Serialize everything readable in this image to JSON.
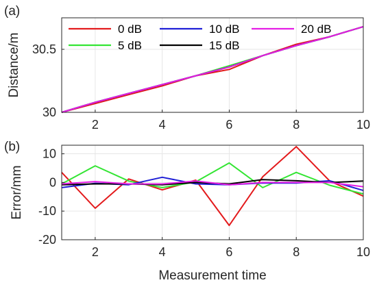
{
  "chart_data": [
    {
      "type": "line",
      "panel_label": "(a)",
      "title": "",
      "xlabel": "",
      "ylabel": "Distance/m",
      "xlim": [
        1,
        10
      ],
      "ylim": [
        30,
        30.75
      ],
      "x": [
        1,
        2,
        3,
        4,
        5,
        6,
        7,
        8,
        9,
        10
      ],
      "x_ticks": [
        2,
        4,
        6,
        8,
        10
      ],
      "y_ticks": [
        30,
        30.5
      ],
      "y_tick_labels": [
        "30",
        "30.5"
      ],
      "grid": true,
      "legend": {
        "position": "top-left",
        "columns": 3
      },
      "series": [
        {
          "name": "0 dB",
          "color": "#e31a1c",
          "values": [
            30.0,
            30.07,
            30.14,
            30.21,
            30.29,
            30.34,
            30.45,
            30.54,
            30.6,
            30.68
          ]
        },
        {
          "name": "5 dB",
          "color": "#33e533",
          "values": [
            30.0,
            30.08,
            30.15,
            30.22,
            30.29,
            30.37,
            30.45,
            30.53,
            30.6,
            30.68
          ]
        },
        {
          "name": "10 dB",
          "color": "#1f1fd6",
          "values": [
            30.0,
            30.08,
            30.15,
            30.22,
            30.29,
            30.36,
            30.45,
            30.53,
            30.6,
            30.68
          ]
        },
        {
          "name": "15 dB",
          "color": "#000000",
          "values": [
            30.0,
            30.08,
            30.15,
            30.22,
            30.29,
            30.36,
            30.45,
            30.53,
            30.6,
            30.68
          ]
        },
        {
          "name": "20 dB",
          "color": "#e51ee5",
          "values": [
            30.0,
            30.08,
            30.15,
            30.22,
            30.29,
            30.36,
            30.45,
            30.53,
            30.6,
            30.68
          ]
        }
      ]
    },
    {
      "type": "line",
      "panel_label": "(b)",
      "title": "",
      "xlabel": "Measurement time",
      "ylabel": "Error/mm",
      "xlim": [
        1,
        10
      ],
      "ylim": [
        -20,
        13
      ],
      "x": [
        1,
        2,
        3,
        4,
        5,
        6,
        7,
        8,
        9,
        10
      ],
      "x_ticks": [
        2,
        4,
        6,
        8,
        10
      ],
      "y_ticks": [
        -20,
        -10,
        0,
        10
      ],
      "y_tick_labels": [
        "-20",
        "-10",
        "0",
        "10"
      ],
      "grid": true,
      "series": [
        {
          "name": "0 dB",
          "color": "#e31a1c",
          "values": [
            3.5,
            -9.0,
            1.2,
            -2.6,
            0.8,
            -15.0,
            2.0,
            12.5,
            0.5,
            -4.8
          ]
        },
        {
          "name": "5 dB",
          "color": "#33e533",
          "values": [
            -0.5,
            5.8,
            0.5,
            -1.8,
            0.2,
            6.8,
            -1.8,
            3.5,
            -1.0,
            -4.0
          ]
        },
        {
          "name": "10 dB",
          "color": "#1f1fd6",
          "values": [
            -1.8,
            -0.3,
            -0.8,
            1.8,
            -0.5,
            -0.8,
            -0.2,
            -0.2,
            0.6,
            -2.8
          ]
        },
        {
          "name": "15 dB",
          "color": "#000000",
          "values": [
            -0.8,
            -0.5,
            -0.5,
            -0.8,
            0.0,
            -0.5,
            1.0,
            0.6,
            0.0,
            0.5
          ]
        },
        {
          "name": "20 dB",
          "color": "#e51ee5",
          "values": [
            -0.5,
            0.3,
            -0.5,
            -0.5,
            0.5,
            -0.8,
            0.0,
            0.0,
            0.0,
            -1.5
          ]
        }
      ]
    }
  ]
}
